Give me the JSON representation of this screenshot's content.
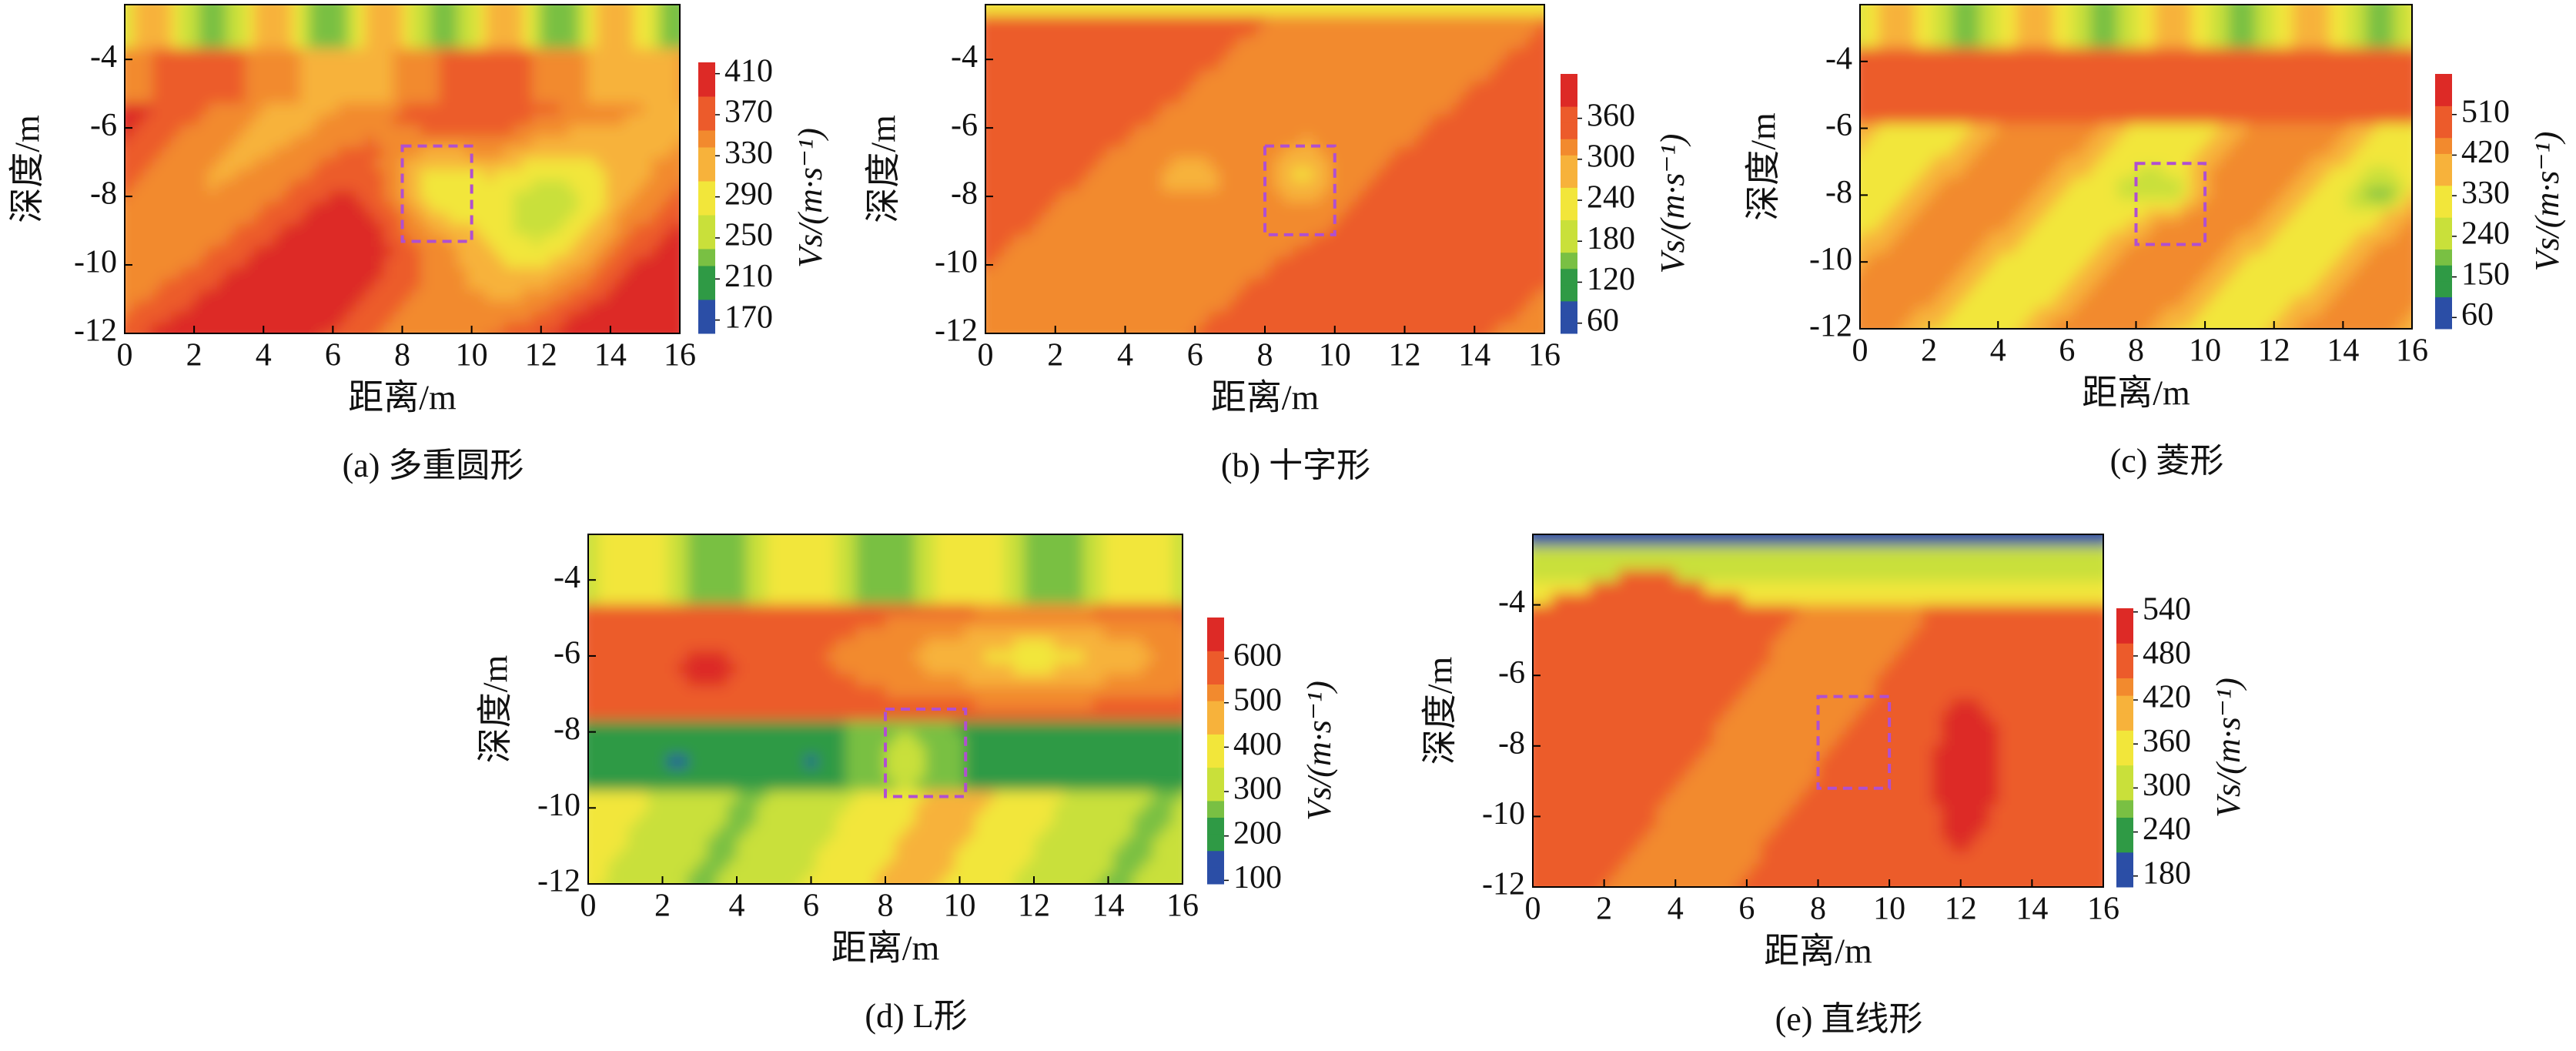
{
  "chart_data": [
    {
      "type": "contour",
      "caption": "(a) 多重圆形",
      "xlabel": "距离/m",
      "ylabel": "深度/m",
      "xlim": [
        0,
        16
      ],
      "xticks": [
        0,
        2,
        4,
        6,
        8,
        10,
        12,
        14,
        16
      ],
      "ylim": [
        -12,
        -2.4
      ],
      "yticks": [
        -12,
        -10,
        -8,
        -6,
        -4
      ],
      "colorbar_label": "Vs/(m·s⁻¹)",
      "colorbar_lim": [
        157,
        421
      ],
      "colorbar_ticks": [
        170,
        210,
        250,
        290,
        330,
        370,
        410
      ],
      "colormap": [
        "#2b4ea6",
        "#2f9a45",
        "#79c043",
        "#c9e03a",
        "#f2e63a",
        "#f7b23b",
        "#f28a2e",
        "#ec5b2b",
        "#dd2a26"
      ]
    },
    {
      "type": "contour",
      "caption": "(b) 十字形",
      "xlabel": "距离/m",
      "ylabel": "深度/m",
      "xlim": [
        0,
        16
      ],
      "xticks": [
        0,
        2,
        4,
        6,
        8,
        10,
        12,
        14,
        16
      ],
      "ylim": [
        -12,
        -2.4
      ],
      "yticks": [
        -12,
        -10,
        -8,
        -6,
        -4
      ],
      "colorbar_label": "Vs/(m·s⁻¹)",
      "colorbar_lim": [
        45,
        425
      ],
      "colorbar_ticks": [
        60,
        120,
        180,
        240,
        300,
        360
      ],
      "colormap": [
        "#2b4ea6",
        "#2f9a45",
        "#79c043",
        "#c9e03a",
        "#f2e63a",
        "#f7b23b",
        "#f28a2e",
        "#ec5b2b",
        "#dd2a26"
      ]
    },
    {
      "type": "contour",
      "caption": "(c) 菱形",
      "xlabel": "距离/m",
      "ylabel": "深度/m",
      "xlim": [
        0,
        16
      ],
      "xticks": [
        0,
        2,
        4,
        6,
        8,
        10,
        12,
        14,
        16
      ],
      "ylim": [
        -12,
        -2.3
      ],
      "yticks": [
        -12,
        -10,
        -8,
        -6,
        -4
      ],
      "colorbar_label": "Vs/(m·s⁻¹)",
      "colorbar_lim": [
        35,
        600
      ],
      "colorbar_ticks": [
        60,
        150,
        240,
        330,
        420,
        510
      ],
      "colormap": [
        "#2b4ea6",
        "#2f9a45",
        "#79c043",
        "#c9e03a",
        "#f2e63a",
        "#f7b23b",
        "#f28a2e",
        "#ec5b2b",
        "#dd2a26"
      ]
    },
    {
      "type": "contour",
      "caption": "(d) L形",
      "xlabel": "距离/m",
      "ylabel": "深度/m",
      "xlim": [
        0,
        16
      ],
      "xticks": [
        0,
        2,
        4,
        6,
        8,
        10,
        12,
        14,
        16
      ],
      "ylim": [
        -12,
        -2.8
      ],
      "yticks": [
        -12,
        -10,
        -8,
        -6,
        -4
      ],
      "colorbar_label": "Vs/(m·s⁻¹)",
      "colorbar_lim": [
        92,
        692
      ],
      "colorbar_ticks": [
        100,
        200,
        300,
        400,
        500,
        600
      ],
      "colormap": [
        "#2b4ea6",
        "#2f9a45",
        "#79c043",
        "#c9e03a",
        "#f2e63a",
        "#f7b23b",
        "#f28a2e",
        "#ec5b2b",
        "#dd2a26"
      ]
    },
    {
      "type": "contour",
      "caption": "(e) 直线形",
      "xlabel": "距离/m",
      "ylabel": "深度/m",
      "xlim": [
        0,
        16
      ],
      "xticks": [
        0,
        2,
        4,
        6,
        8,
        10,
        12,
        14,
        16
      ],
      "ylim": [
        -12,
        -2.0
      ],
      "yticks": [
        -12,
        -10,
        -8,
        -6,
        -4
      ],
      "colorbar_label": "Vs/(m·s⁻¹)",
      "colorbar_lim": [
        165,
        545
      ],
      "colorbar_ticks": [
        180,
        240,
        300,
        360,
        420,
        480,
        540
      ],
      "colormap": [
        "#2b4ea6",
        "#2f9a45",
        "#79c043",
        "#c9e03a",
        "#f2e63a",
        "#f7b23b",
        "#f28a2e",
        "#ec5b2b",
        "#dd2a26"
      ]
    }
  ]
}
